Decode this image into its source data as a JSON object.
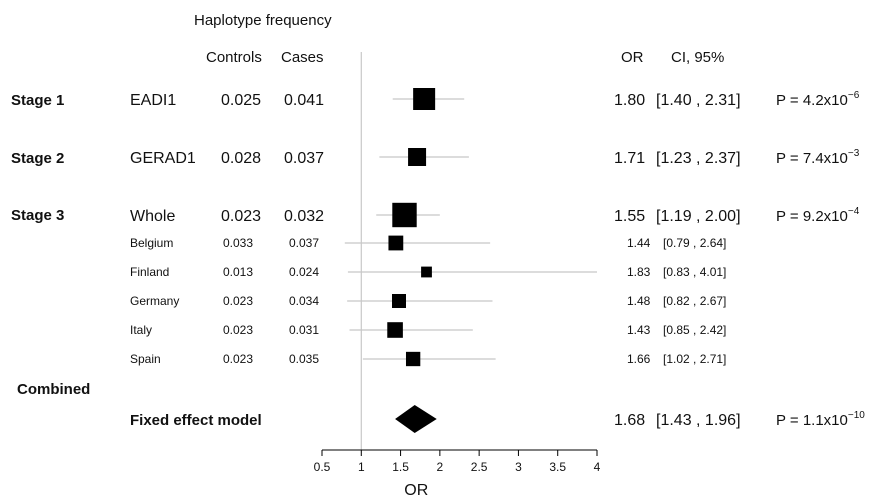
{
  "chart_data": {
    "type": "forest",
    "header": {
      "group_title": "Haplotype frequency",
      "col_controls": "Controls",
      "col_cases": "Cases",
      "col_or": "OR",
      "col_ci": "CI, 95%"
    },
    "stages": [
      {
        "label": "Stage 1"
      },
      {
        "label": "Stage 2"
      },
      {
        "label": "Stage 3"
      },
      {
        "label": "Combined"
      }
    ],
    "rows": [
      {
        "stage": "Stage 1",
        "study": "EADI1",
        "controls": "0.025",
        "cases": "0.041",
        "or": 1.8,
        "ci": [
          1.4,
          2.31
        ],
        "or_text": "1.80",
        "ci_text": "[1.40 , 2.31]",
        "p_base": "P = 4.2x10",
        "p_exp": "−6",
        "size": "major",
        "weight": 1.0
      },
      {
        "stage": "Stage 2",
        "study": "GERAD1",
        "controls": "0.028",
        "cases": "0.037",
        "or": 1.71,
        "ci": [
          1.23,
          2.37
        ],
        "or_text": "1.71",
        "ci_text": "[1.23 , 2.37]",
        "p_base": "P = 7.4x10",
        "p_exp": "−3",
        "size": "major",
        "weight": 0.75
      },
      {
        "stage": "Stage 3",
        "study": "Whole",
        "controls": "0.023",
        "cases": "0.032",
        "or": 1.55,
        "ci": [
          1.19,
          2.0
        ],
        "or_text": "1.55",
        "ci_text": "[1.19 , 2.00]",
        "p_base": "P = 9.2x10",
        "p_exp": "−4",
        "size": "major",
        "weight": 1.15
      },
      {
        "stage": "Stage 3",
        "study": "Belgium",
        "controls": "0.033",
        "cases": "0.037",
        "or": 1.44,
        "ci": [
          0.79,
          2.64
        ],
        "or_text": "1.44",
        "ci_text": "[0.79 , 2.64]",
        "size": "minor",
        "weight": 0.55
      },
      {
        "stage": "Stage 3",
        "study": "Finland",
        "controls": "0.013",
        "cases": "0.024",
        "or": 1.83,
        "ci": [
          0.83,
          4.01
        ],
        "or_text": "1.83",
        "ci_text": "[0.83 , 4.01]",
        "size": "minor",
        "weight": 0.3
      },
      {
        "stage": "Stage 3",
        "study": "Germany",
        "controls": "0.023",
        "cases": "0.034",
        "or": 1.48,
        "ci": [
          0.82,
          2.67
        ],
        "or_text": "1.48",
        "ci_text": "[0.82 , 2.67]",
        "size": "minor",
        "weight": 0.5
      },
      {
        "stage": "Stage 3",
        "study": "Italy",
        "controls": "0.023",
        "cases": "0.031",
        "or": 1.43,
        "ci": [
          0.85,
          2.42
        ],
        "or_text": "1.43",
        "ci_text": "[0.85 , 2.42]",
        "size": "minor",
        "weight": 0.6
      },
      {
        "stage": "Stage 3",
        "study": "Spain",
        "controls": "0.023",
        "cases": "0.035",
        "or": 1.66,
        "ci": [
          1.02,
          2.71
        ],
        "or_text": "1.66",
        "ci_text": "[1.02 , 2.71]",
        "size": "minor",
        "weight": 0.52
      }
    ],
    "summary": {
      "label": "Fixed effect model",
      "or": 1.68,
      "ci": [
        1.43,
        1.96
      ],
      "or_text": "1.68",
      "ci_text": "[1.43 , 1.96]",
      "p_base": "P = 1.1x10",
      "p_exp": "−10"
    },
    "x_axis": {
      "label": "OR",
      "ticks": [
        0.5,
        1,
        1.5,
        2,
        2.5,
        3,
        3.5,
        4
      ],
      "tick_labels": [
        "0.5",
        "1",
        "1.5",
        "2",
        "2.5",
        "3",
        "3.5",
        "4"
      ],
      "range": [
        0.5,
        4
      ],
      "reference_line": 1
    },
    "colors": {
      "marker": "#000000",
      "ci_line": "#c8c8c8",
      "reference": "#c8c8c8",
      "axis": "#000000"
    }
  }
}
